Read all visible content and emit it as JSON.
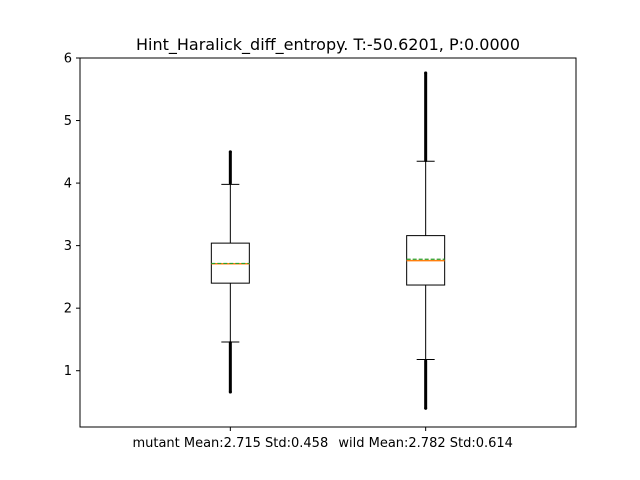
{
  "chart_data": {
    "type": "box",
    "title": "Hint_Haralick_diff_entropy. T:-50.6201, P:0.0000",
    "xlabel": "",
    "ylabel": "",
    "ylim": [
      0.1,
      6.0
    ],
    "yticks": [
      1,
      2,
      3,
      4,
      5,
      6
    ],
    "categories": [
      "mutant Mean:2.715 Std:0.458",
      "wild Mean:2.782 Std:0.614"
    ],
    "series": [
      {
        "label": "mutant Mean:2.715 Std:0.458",
        "whisker_low": 1.46,
        "q1": 2.4,
        "median": 2.71,
        "mean": 2.715,
        "q3": 3.04,
        "whisker_high": 3.98,
        "outliers_low": [
          0.66,
          1.45
        ],
        "outliers_high": [
          4.0,
          4.5
        ]
      },
      {
        "label": "wild Mean:2.782 Std:0.614",
        "whisker_low": 1.18,
        "q1": 2.37,
        "median": 2.76,
        "mean": 2.782,
        "q3": 3.16,
        "whisker_high": 4.35,
        "outliers_low": [
          0.4,
          1.16
        ],
        "outliers_high": [
          4.36,
          5.76
        ]
      }
    ],
    "colors": {
      "box": "#000000",
      "median": "#ff7f0e",
      "mean": "#2ca02c",
      "outlier": "#000000"
    },
    "grid": false,
    "legend": "none"
  }
}
